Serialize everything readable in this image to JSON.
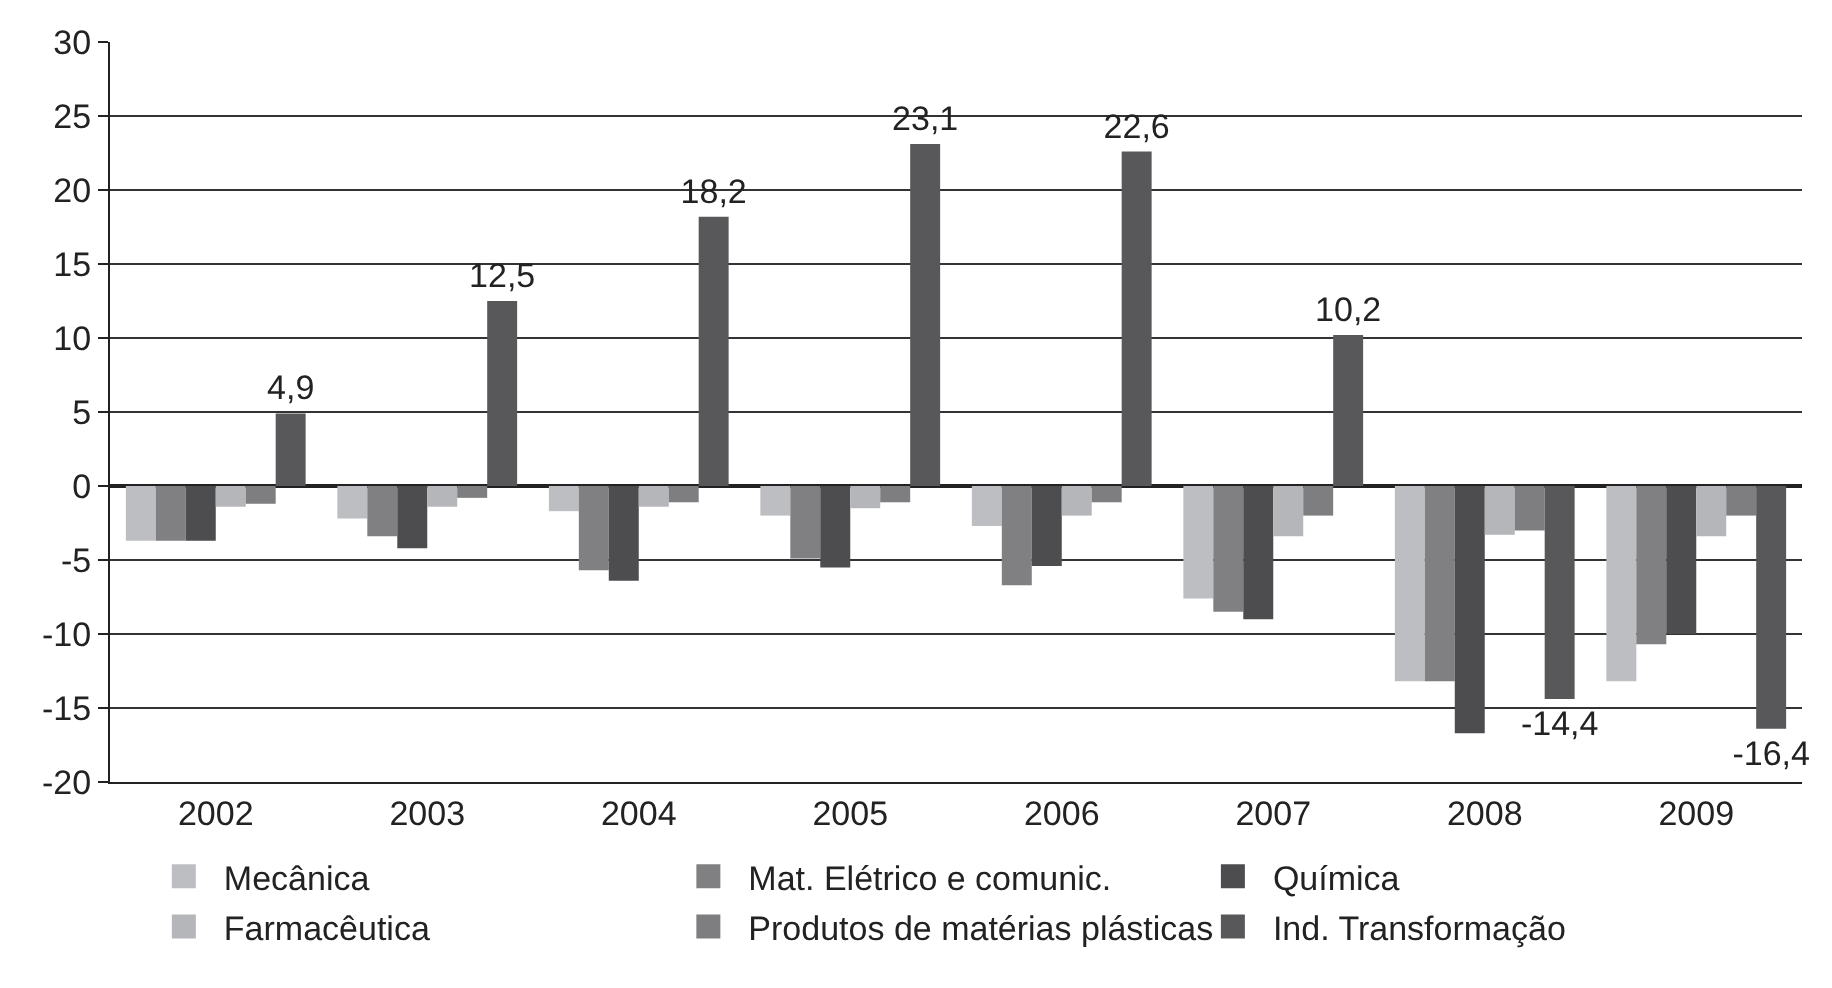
{
  "chart_data": {
    "type": "bar",
    "categories": [
      "2002",
      "2003",
      "2004",
      "2005",
      "2006",
      "2007",
      "2008",
      "2009"
    ],
    "series": [
      {
        "name": "Mecânica",
        "color": "#bdbec2",
        "values": [
          -3.7,
          -2.2,
          -1.7,
          -2.0,
          -2.7,
          -7.6,
          -13.2,
          -13.2
        ]
      },
      {
        "name": "Mat. Elétrico e comunic.",
        "color": "#808083",
        "values": [
          -3.7,
          -3.4,
          -5.7,
          -4.9,
          -6.7,
          -8.5,
          -13.2,
          -10.7
        ]
      },
      {
        "name": "Química",
        "color": "#4d4d50",
        "values": [
          -3.7,
          -4.2,
          -6.4,
          -5.5,
          -5.4,
          -9.0,
          -16.7,
          -10.0
        ]
      },
      {
        "name": "Farmacêutica",
        "color": "#b5b6b9",
        "values": [
          -1.4,
          -1.4,
          -1.4,
          -1.5,
          -2.0,
          -3.4,
          -3.3,
          -3.4
        ]
      },
      {
        "name": "Produtos de matérias plásticas",
        "color": "#7e7e80",
        "values": [
          -1.2,
          -0.8,
          -1.1,
          -1.1,
          -1.1,
          -2.0,
          -3.0,
          -2.0
        ]
      },
      {
        "name": "Ind. Transformação",
        "color": "#58585a",
        "values": [
          4.9,
          12.5,
          18.2,
          23.1,
          22.6,
          10.2,
          -14.4,
          -16.4
        ],
        "value_labels": [
          "4,9",
          "12,5",
          "18,2",
          "23,1",
          "22,6",
          "10,2",
          "-14,4",
          "-16,4"
        ]
      }
    ],
    "ylim": [
      -20,
      30
    ],
    "yticks": [
      -20,
      -15,
      -10,
      -5,
      0,
      5,
      10,
      15,
      20,
      25,
      30
    ],
    "grid": "y",
    "legend": "bottom"
  }
}
